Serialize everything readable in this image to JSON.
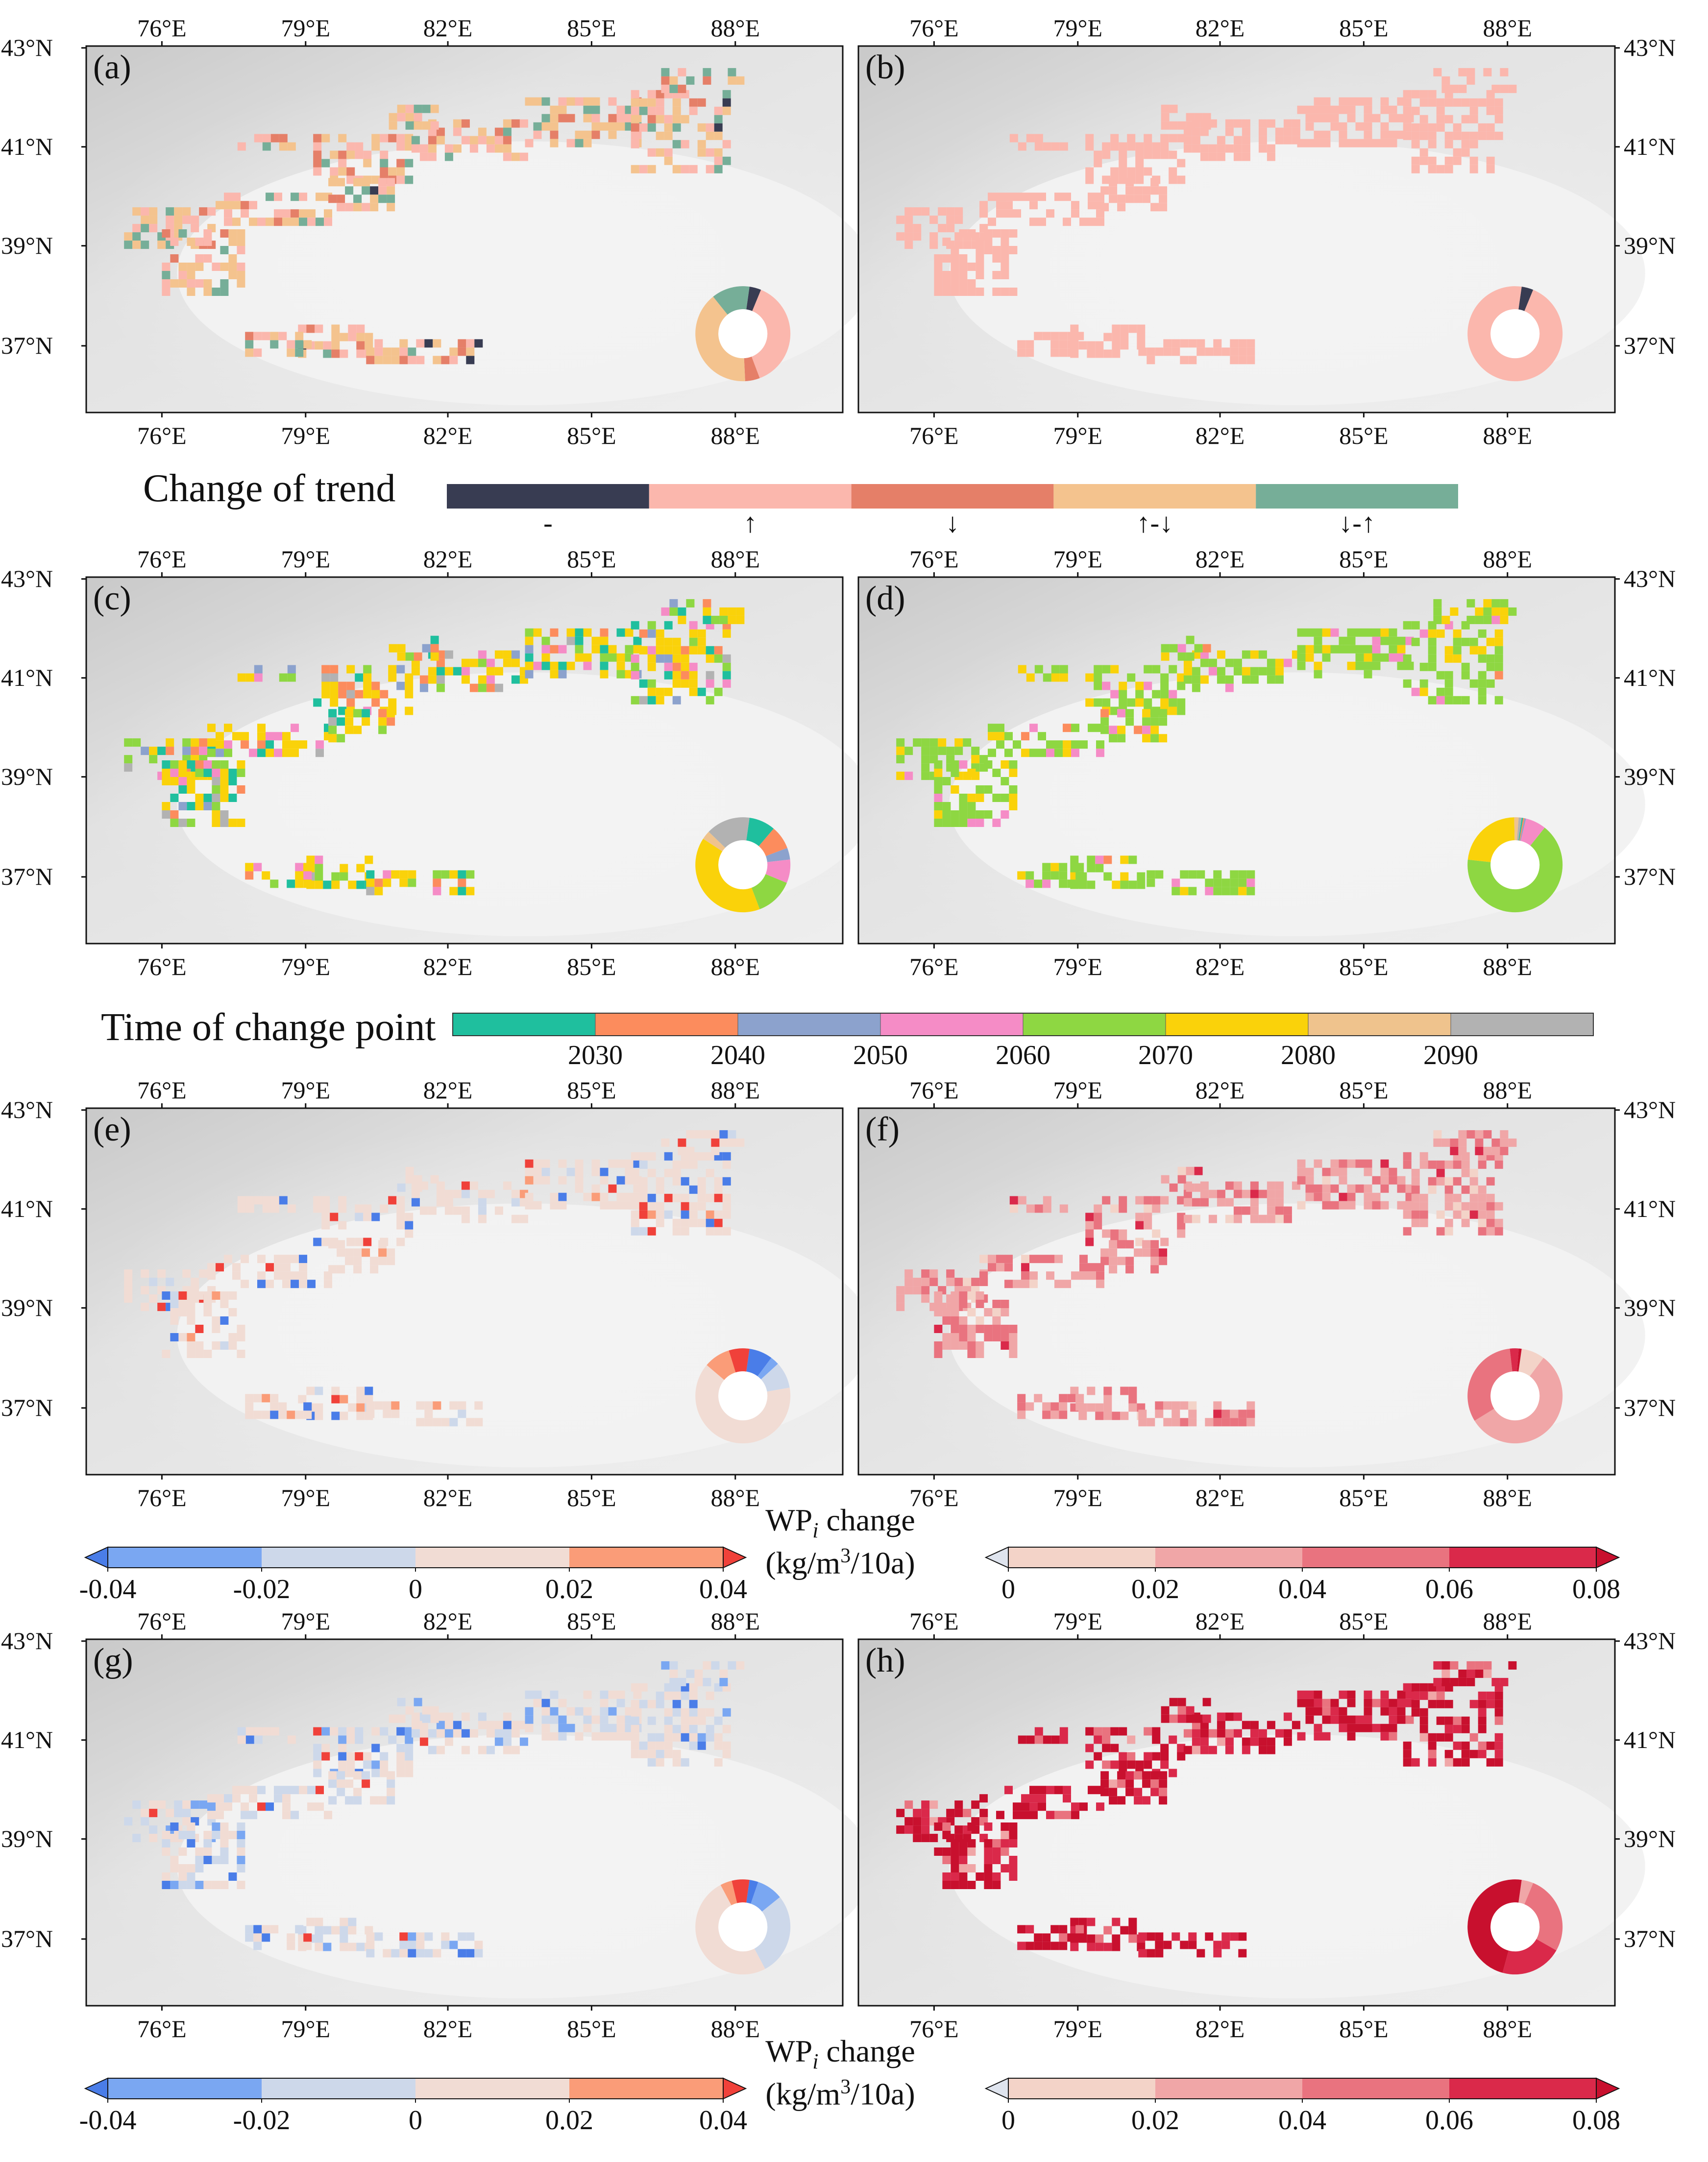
{
  "figure": {
    "panel_labels": [
      "(a)",
      "(b)",
      "(c)",
      "(d)",
      "(e)",
      "(f)",
      "(g)",
      "(h)"
    ],
    "lon_ticks": [
      "76°E",
      "79°E",
      "82°E",
      "85°E",
      "88°E"
    ],
    "lat_ticks": [
      "43°N",
      "41°N",
      "39°N",
      "37°N"
    ],
    "lat_ticks_plain": [
      "43°N",
      "41°N",
      "39°N",
      "37°N"
    ]
  },
  "legends": {
    "trend": {
      "title": "Change of trend",
      "categories": [
        {
          "label": "-",
          "color": "#383c52"
        },
        {
          "label": "↑",
          "color": "#fbb7ad"
        },
        {
          "label": "↓",
          "color": "#e57f68"
        },
        {
          "label": "↑-↓",
          "color": "#f4c38e"
        },
        {
          "label": "↓-↑",
          "color": "#76ae98"
        }
      ]
    },
    "time": {
      "title": "Time of change point",
      "colors": [
        "#1fbf9e",
        "#fc8c5d",
        "#8ca2cd",
        "#f58cc6",
        "#8ed742",
        "#fad20a",
        "#efc38d",
        "#b2b2b2"
      ],
      "ticks": [
        "2030",
        "2040",
        "2050",
        "2060",
        "2070",
        "2080",
        "2090"
      ]
    },
    "wp_diverging": {
      "colors": [
        "#7aa7f2",
        "#cdd8ea",
        "#f1dcd4",
        "#fa9c78"
      ],
      "under_color": "#4a7de8",
      "over_color": "#f0413a",
      "ticks": [
        "-0.04",
        "-0.02",
        "0",
        "0.02",
        "0.04"
      ]
    },
    "wp_sequential": {
      "colors": [
        "#f3d3c8",
        "#f0a6a7",
        "#e9737f",
        "#da294a"
      ],
      "under_color": "#dfe4ee",
      "over_color": "#c8102e",
      "ticks": [
        "0",
        "0.02",
        "0.04",
        "0.06",
        "0.08"
      ]
    },
    "wp_title": "WPi change",
    "wp_title_main": "WP",
    "wp_title_sub": "i",
    "wp_title_rest": " change",
    "wp_unit": "(kg/m3/10a)",
    "wp_unit_pre": "(kg/m",
    "wp_unit_sup": "3",
    "wp_unit_post": "/10a)"
  },
  "chart_data": [
    {
      "panel": "(a)",
      "type": "pie",
      "title": "Change of trend",
      "categories": [
        "-",
        "↑",
        "↓",
        "↑-↓",
        "↓-↑"
      ],
      "values": [
        4,
        38,
        5,
        40,
        13
      ],
      "colors": [
        "#383c52",
        "#fbb7ad",
        "#e57f68",
        "#f4c38e",
        "#76ae98"
      ]
    },
    {
      "panel": "(b)",
      "type": "pie",
      "title": "Change of trend",
      "categories": [
        "-",
        "↑"
      ],
      "values": [
        4,
        96
      ],
      "colors": [
        "#383c52",
        "#fbb7ad"
      ]
    },
    {
      "panel": "(c)",
      "type": "pie",
      "title": "Time of change point",
      "categories": [
        "<2030",
        "2030-2040",
        "2040-2050",
        "2050-2060",
        "2060-2070",
        "2070-2080",
        "2080-2090",
        ">2090"
      ],
      "values": [
        9,
        8,
        4,
        8,
        13,
        40,
        3,
        15
      ],
      "colors": [
        "#1fbf9e",
        "#fc8c5d",
        "#8ca2cd",
        "#f58cc6",
        "#8ed742",
        "#fad20a",
        "#efc38d",
        "#b2b2b2"
      ]
    },
    {
      "panel": "(d)",
      "type": "pie",
      "title": "Time of change point",
      "categories": [
        "<2030",
        "2030-2040",
        "2040-2050",
        "2050-2060",
        "2060-2070",
        "2070-2080",
        "2080-2090",
        ">2090"
      ],
      "values": [
        0.5,
        0.5,
        0.5,
        7,
        66,
        23,
        1.5,
        1
      ],
      "colors": [
        "#1fbf9e",
        "#fc8c5d",
        "#8ca2cd",
        "#f58cc6",
        "#8ed742",
        "#fad20a",
        "#efc38d",
        "#b2b2b2"
      ]
    },
    {
      "panel": "(e)",
      "type": "pie",
      "title": "WPi change",
      "categories": [
        "<-0.04",
        "-0.04~-0.02",
        "-0.02~0",
        "0~0.02",
        "0.02~0.04",
        ">0.04"
      ],
      "values": [
        8,
        3,
        9,
        64,
        9,
        7
      ],
      "colors": [
        "#4a7de8",
        "#7aa7f2",
        "#cdd8ea",
        "#f1dcd4",
        "#fa9c78",
        "#f0413a"
      ]
    },
    {
      "panel": "(f)",
      "type": "pie",
      "title": "WPi change",
      "categories": [
        "0~0.02",
        "0.02~0.04",
        "0.04~0.06",
        "0.06~0.08",
        ">0.08"
      ],
      "values": [
        8,
        56,
        32,
        3,
        1
      ],
      "colors": [
        "#f3d3c8",
        "#f0a6a7",
        "#e9737f",
        "#da294a",
        "#c8102e"
      ]
    },
    {
      "panel": "(g)",
      "type": "pie",
      "title": "WPi change",
      "categories": [
        "<-0.04",
        "-0.04~-0.02",
        "-0.02~0",
        "0~0.02",
        "0.02~0.04",
        ">0.04"
      ],
      "values": [
        3,
        9,
        28,
        50,
        4,
        6
      ],
      "colors": [
        "#4a7de8",
        "#7aa7f2",
        "#cdd8ea",
        "#f1dcd4",
        "#fa9c78",
        "#f0413a"
      ]
    },
    {
      "panel": "(h)",
      "type": "pie",
      "title": "WPi change",
      "categories": [
        "0.02~0.04",
        "0.04~0.06",
        "0.06~0.08",
        ">0.08"
      ],
      "values": [
        4,
        27,
        21,
        48
      ],
      "colors": [
        "#f0a6a7",
        "#e9737f",
        "#da294a",
        "#c8102e"
      ]
    }
  ]
}
